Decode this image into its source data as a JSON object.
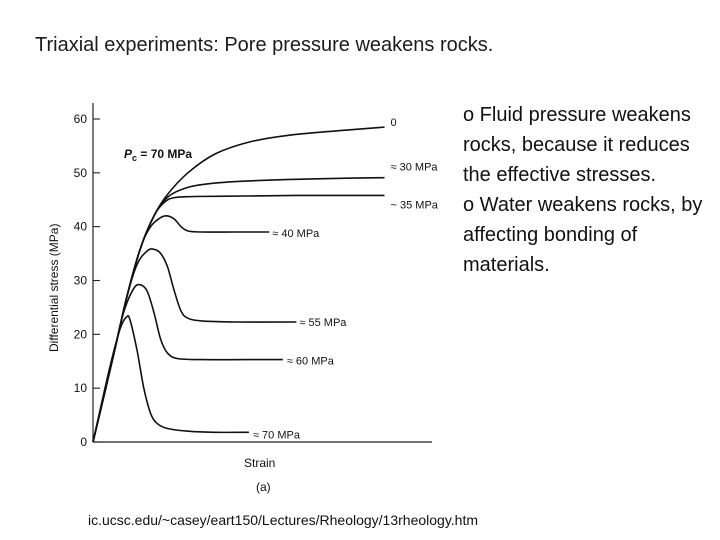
{
  "slide": {
    "title": "Triaxial experiments: Pore pressure weakens rocks.",
    "bullets": [
      "o Fluid pressure weakens rocks, because it reduces the effective stresses.",
      "o Water weakens rocks, by affecting bonding of materials."
    ],
    "source_url": "ic.ucsc.edu/~casey/eart150/Lectures/Rheology/13rheology.htm"
  },
  "colors": {
    "axis": "#222222",
    "curve": "#111111",
    "text": "#111111"
  },
  "chart_data": {
    "type": "line",
    "title": "",
    "xlabel": "Strain",
    "ylabel": "Differential stress (MPa)",
    "panel_label": "(a)",
    "ylim": [
      0,
      60
    ],
    "yticks": [
      0,
      10,
      20,
      30,
      40,
      50,
      60
    ],
    "xlim": [
      0,
      1
    ],
    "confining_pressure_label": "P",
    "confining_pressure_subscript": "c",
    "confining_pressure_value": " = 70 MPa",
    "series": [
      {
        "name": "0",
        "label": "0",
        "points": [
          [
            0,
            0
          ],
          [
            0.06,
            16
          ],
          [
            0.1,
            27
          ],
          [
            0.14,
            36
          ],
          [
            0.18,
            42
          ],
          [
            0.22,
            46
          ],
          [
            0.28,
            50
          ],
          [
            0.36,
            53.5
          ],
          [
            0.46,
            55.7
          ],
          [
            0.58,
            57
          ],
          [
            0.72,
            57.8
          ],
          [
            0.86,
            58.5
          ]
        ]
      },
      {
        "name": "30 MPa",
        "label": "≈ 30 MPa",
        "points": [
          [
            0,
            0
          ],
          [
            0.06,
            16
          ],
          [
            0.1,
            27
          ],
          [
            0.14,
            36
          ],
          [
            0.18,
            42
          ],
          [
            0.22,
            45.5
          ],
          [
            0.28,
            47.3
          ],
          [
            0.36,
            48.1
          ],
          [
            0.46,
            48.5
          ],
          [
            0.6,
            48.8
          ],
          [
            0.75,
            49
          ],
          [
            0.86,
            49.1
          ]
        ]
      },
      {
        "name": "35 MPa",
        "label": "~ 35 MPa",
        "points": [
          [
            0,
            0
          ],
          [
            0.06,
            16
          ],
          [
            0.1,
            27
          ],
          [
            0.14,
            36
          ],
          [
            0.18,
            42
          ],
          [
            0.21,
            44.5
          ],
          [
            0.24,
            45.4
          ],
          [
            0.3,
            45.6
          ],
          [
            0.45,
            45.7
          ],
          [
            0.6,
            45.8
          ],
          [
            0.75,
            45.8
          ],
          [
            0.86,
            45.8
          ]
        ]
      },
      {
        "name": "40 MPa",
        "label": "≈ 40 MPa",
        "points": [
          [
            0,
            0
          ],
          [
            0.06,
            16
          ],
          [
            0.1,
            27
          ],
          [
            0.14,
            36
          ],
          [
            0.17,
            40
          ],
          [
            0.2,
            41.7
          ],
          [
            0.22,
            42
          ],
          [
            0.24,
            41.4
          ],
          [
            0.26,
            40
          ],
          [
            0.28,
            39.2
          ],
          [
            0.32,
            39
          ],
          [
            0.42,
            39
          ],
          [
            0.52,
            39
          ]
        ]
      },
      {
        "name": "55 MPa",
        "label": "≈ 55 MPa",
        "points": [
          [
            0,
            0
          ],
          [
            0.06,
            16
          ],
          [
            0.1,
            27
          ],
          [
            0.13,
            33
          ],
          [
            0.16,
            35.5
          ],
          [
            0.18,
            35.8
          ],
          [
            0.2,
            35
          ],
          [
            0.22,
            32.5
          ],
          [
            0.24,
            28
          ],
          [
            0.26,
            24.3
          ],
          [
            0.28,
            23
          ],
          [
            0.32,
            22.5
          ],
          [
            0.42,
            22.3
          ],
          [
            0.6,
            22.3
          ]
        ]
      },
      {
        "name": "60 MPa",
        "label": "≈ 60 MPa",
        "points": [
          [
            0,
            0
          ],
          [
            0.06,
            16
          ],
          [
            0.09,
            24
          ],
          [
            0.12,
            28.5
          ],
          [
            0.14,
            29.2
          ],
          [
            0.16,
            28
          ],
          [
            0.18,
            24
          ],
          [
            0.2,
            19
          ],
          [
            0.22,
            16.5
          ],
          [
            0.25,
            15.5
          ],
          [
            0.32,
            15.3
          ],
          [
            0.45,
            15.3
          ],
          [
            0.56,
            15.3
          ]
        ]
      },
      {
        "name": "70 MPa",
        "label": "≈ 70 MPa",
        "points": [
          [
            0,
            0
          ],
          [
            0.05,
            14
          ],
          [
            0.08,
            21
          ],
          [
            0.1,
            23.3
          ],
          [
            0.11,
            22.5
          ],
          [
            0.13,
            17
          ],
          [
            0.15,
            10
          ],
          [
            0.17,
            5.3
          ],
          [
            0.19,
            3.4
          ],
          [
            0.22,
            2.5
          ],
          [
            0.28,
            2
          ],
          [
            0.36,
            1.8
          ],
          [
            0.46,
            1.8
          ]
        ]
      }
    ]
  }
}
